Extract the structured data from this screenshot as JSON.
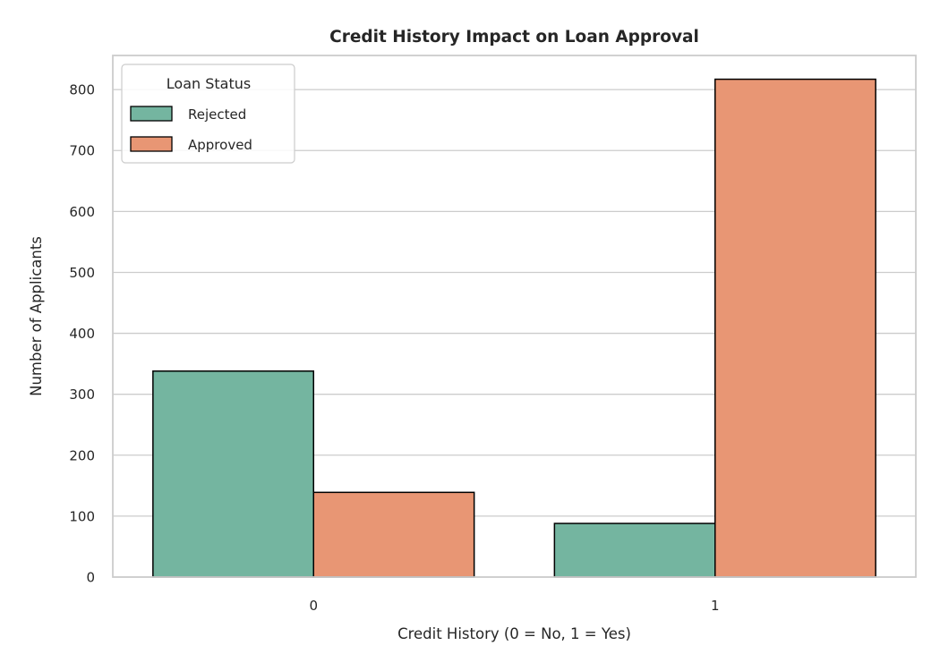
{
  "chart_data": {
    "type": "bar",
    "title": "Credit History Impact on Loan Approval",
    "xlabel": "Credit History (0 = No, 1 = Yes)",
    "ylabel": "Number of Applicants",
    "categories": [
      "0",
      "1"
    ],
    "series": [
      {
        "name": "Rejected",
        "color": "#74b5a0",
        "values": [
          338,
          88
        ]
      },
      {
        "name": "Approved",
        "color": "#e89674",
        "values": [
          139,
          817
        ]
      }
    ],
    "ylim": [
      0,
      856
    ],
    "yticks": [
      0,
      100,
      200,
      300,
      400,
      500,
      600,
      700,
      800
    ],
    "grid": true,
    "legend": {
      "title": "Loan Status",
      "position": "top-left"
    }
  }
}
